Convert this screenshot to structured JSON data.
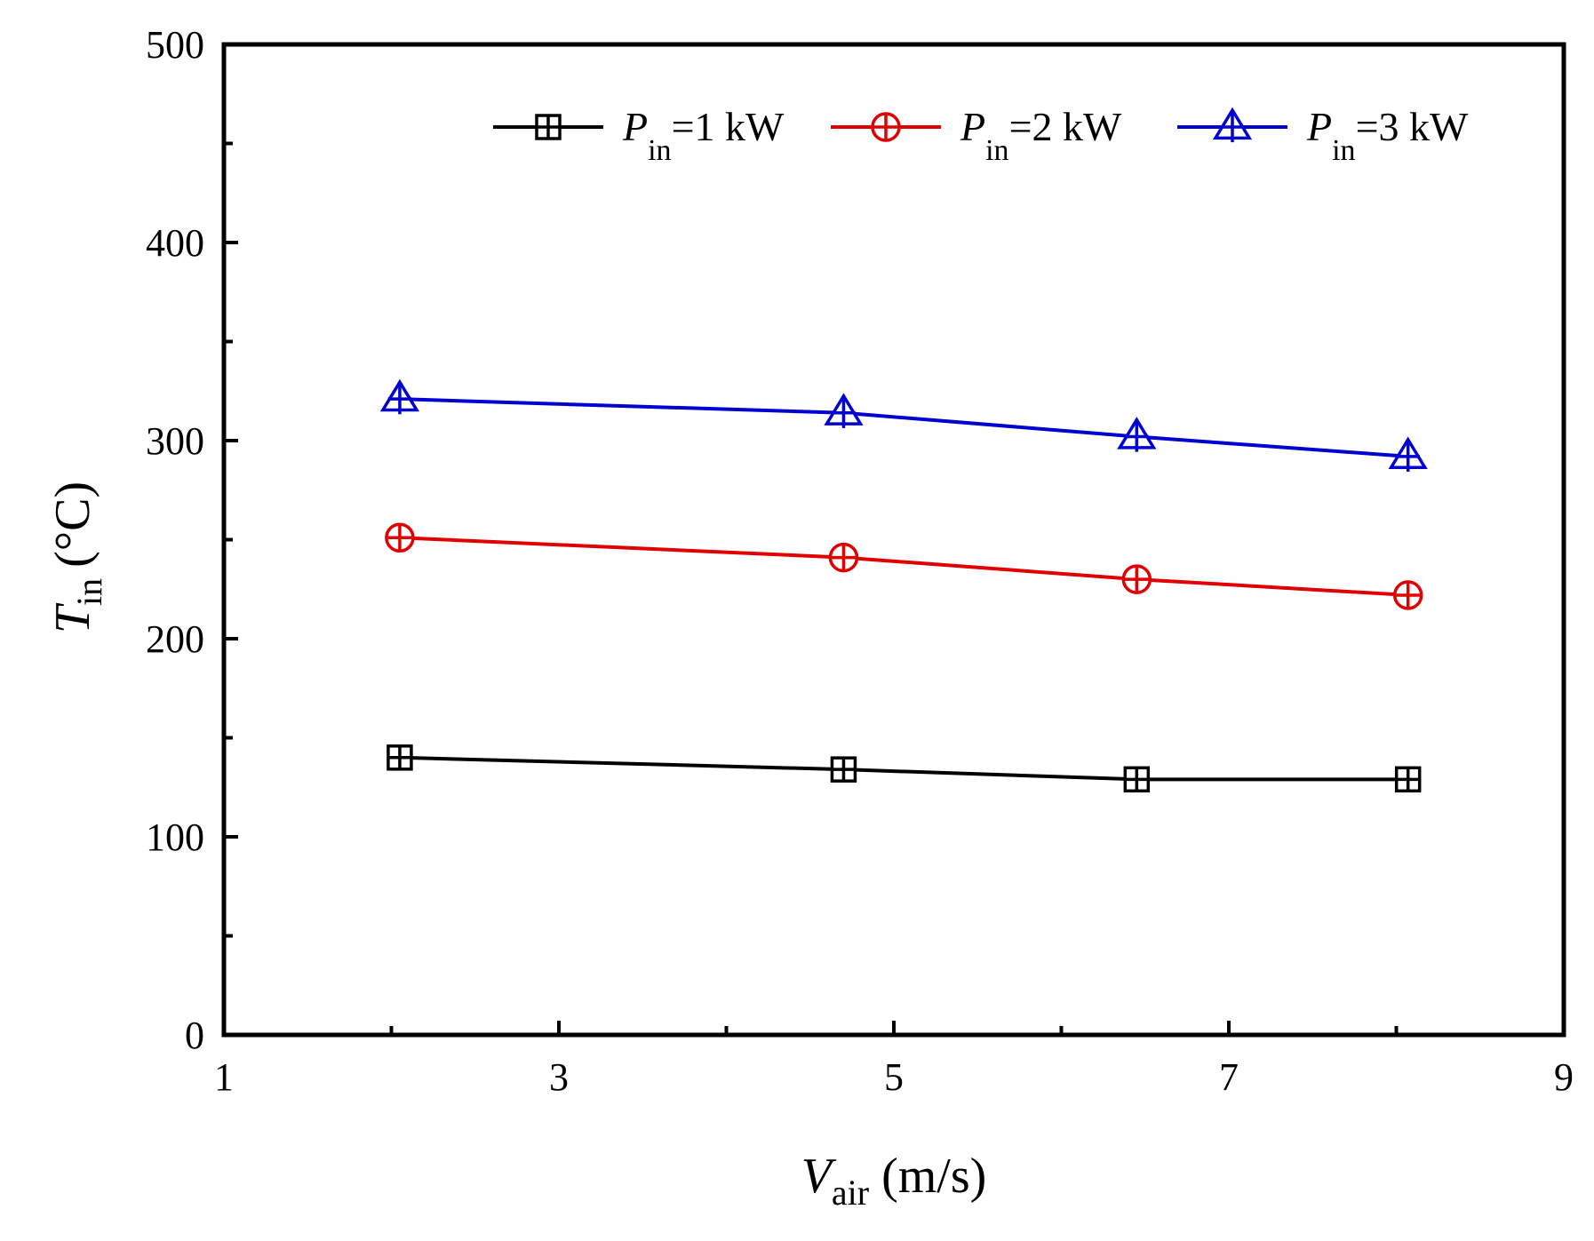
{
  "chart_data": {
    "type": "line",
    "title": "",
    "xlabel": {
      "main": "V",
      "sub": "air",
      "unit": "(m/s)"
    },
    "ylabel": {
      "main": "T",
      "sub": "in",
      "unit": "(°C)"
    },
    "xlim": [
      1,
      9
    ],
    "ylim": [
      0,
      500
    ],
    "xticks": [
      1,
      3,
      5,
      7,
      9
    ],
    "xticks_minor": [
      2,
      4,
      6,
      8
    ],
    "yticks": [
      0,
      100,
      200,
      300,
      400,
      500
    ],
    "yticks_minor": [
      50,
      150,
      250,
      350,
      450
    ],
    "legend_position": "top-right",
    "series": [
      {
        "name": "P_in=1 kW",
        "legend": {
          "main": "P",
          "sub": "in",
          "rest": "=1 kW"
        },
        "marker": "square-plus",
        "color": "#000000",
        "x": [
          2.05,
          4.7,
          6.45,
          8.07
        ],
        "y": [
          140,
          134,
          129,
          129
        ]
      },
      {
        "name": "P_in=2 kW",
        "legend": {
          "main": "P",
          "sub": "in",
          "rest": "=2 kW"
        },
        "marker": "circle-plus",
        "color": "#e00000",
        "x": [
          2.05,
          4.7,
          6.45,
          8.07
        ],
        "y": [
          251,
          241,
          230,
          222
        ]
      },
      {
        "name": "P_in=3 kW",
        "legend": {
          "main": "P",
          "sub": "in",
          "rest": "=3 kW"
        },
        "marker": "triangle-plus",
        "color": "#0000d0",
        "x": [
          2.05,
          4.7,
          6.45,
          8.07
        ],
        "y": [
          321,
          314,
          302,
          292
        ]
      }
    ]
  }
}
